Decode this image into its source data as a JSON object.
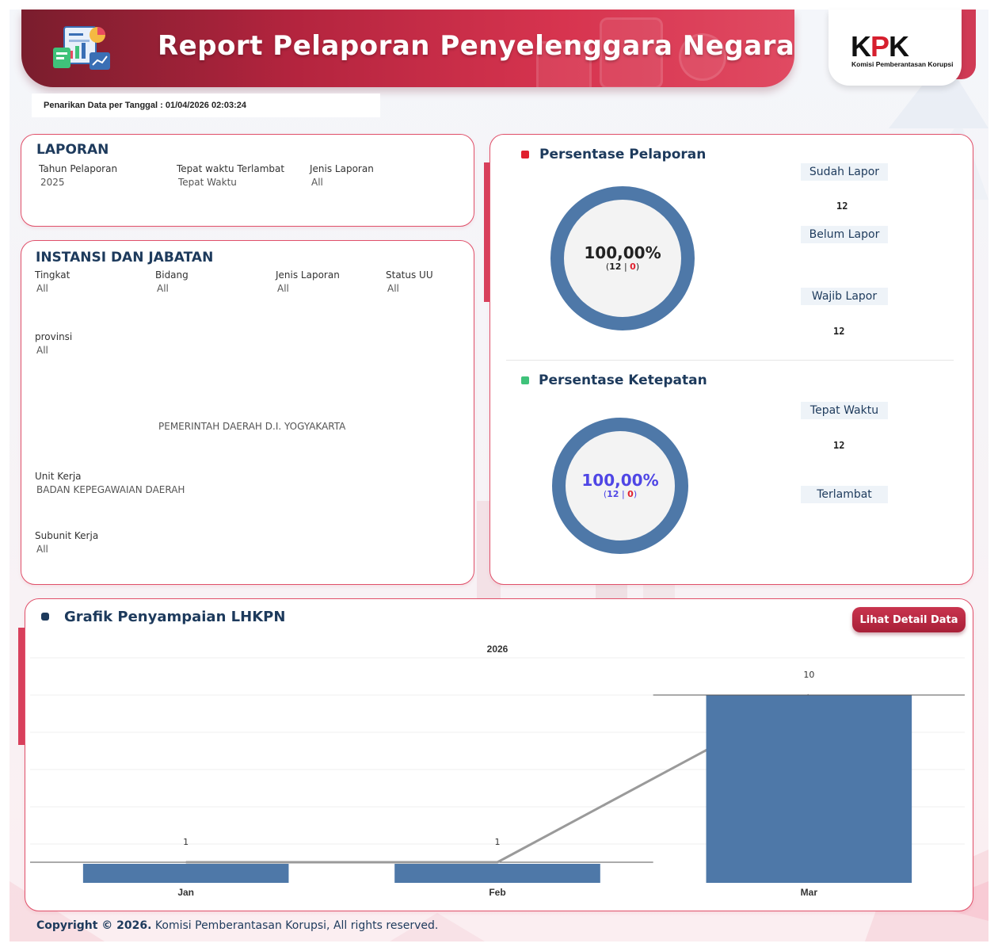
{
  "header": {
    "title": "Report Pelaporan Penyelenggara Negara",
    "logo_text_k": "K",
    "logo_text_p": "P",
    "logo_text_k2": "K",
    "logo_subtitle": "Komisi Pemberantasan Korupsi"
  },
  "pull_date": "Penarikan Data per Tanggal : 01/04/2026 02:03:24",
  "laporan": {
    "title": "LAPORAN",
    "fields": [
      {
        "label": "Tahun Pelaporan",
        "value": "2025"
      },
      {
        "label": "Tepat waktu Terlambat",
        "value": "Tepat Waktu"
      },
      {
        "label": "Jenis Laporan",
        "value": "All"
      }
    ]
  },
  "instansi": {
    "title": "INSTANSI DAN JABATAN",
    "fields": [
      {
        "label": "Tingkat",
        "value": "All"
      },
      {
        "label": "Bidang",
        "value": "All"
      },
      {
        "label": "Jenis Laporan",
        "value": "All"
      },
      {
        "label": "Status UU",
        "value": "All"
      }
    ],
    "provinsi_label": "provinsi",
    "provinsi_value": "All",
    "instansi_name": "PEMERINTAH DAERAH D.I. YOGYAKARTA",
    "unit_kerja_label": "Unit Kerja",
    "unit_kerja_value": "BADAN KEPEGAWAIAN DAERAH",
    "subunit_label": "Subunit Kerja",
    "subunit_value": "All"
  },
  "persentase_pelaporan": {
    "title": "Persentase Pelaporan",
    "dot_color": "#e0202e",
    "percent": "100,00%",
    "sub_open": "(",
    "sub_a": "12",
    "sub_sep": " | ",
    "sub_b": "0",
    "sub_close": ")",
    "fill_fraction": 1.0,
    "sudah_lapor_label": "Sudah Lapor",
    "sudah_lapor_value": "12",
    "belum_lapor_label": "Belum Lapor",
    "wajib_lapor_label": "Wajib Lapor",
    "wajib_lapor_value": "12"
  },
  "persentase_ketepatan": {
    "title": "Persentase Ketepatan",
    "dot_color": "#3fc27a",
    "percent": "100,00%",
    "sub_open": "(",
    "sub_a": "12",
    "sub_sep": " | ",
    "sub_b": "0",
    "sub_close": ")",
    "fill_fraction": 1.0,
    "tepat_waktu_label": "Tepat Waktu",
    "tepat_waktu_value": "12",
    "terlambat_label": "Terlambat"
  },
  "grafik": {
    "title": "Grafik Penyampaian LHKPN",
    "button_label": "Lihat Detail Data"
  },
  "chart_data": {
    "type": "bar",
    "title": "Grafik Penyampaian LHKPN",
    "column_header": "2026",
    "categories": [
      "Jan",
      "Feb",
      "Mar"
    ],
    "values": [
      1,
      1,
      10
    ],
    "bar_color": "#4e78a8",
    "trend_line_color": "#9a9a9a",
    "grid": true
  },
  "footer": {
    "bold": "Copyright © 2026.",
    "rest": " Komisi Pemberantasan Korupsi, All rights reserved."
  }
}
